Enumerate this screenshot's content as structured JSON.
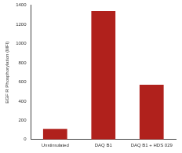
{
  "chart_data": {
    "type": "bar",
    "y_label": "EGF R Phosphorylation (MFI)",
    "categories": [
      "Unstimulated",
      "DAQ B1",
      "DAQ B1 + HDS 029"
    ],
    "values": [
      110,
      1340,
      570
    ],
    "color": "#b0211c",
    "ylim": [
      0,
      1400
    ],
    "yticks": [
      0,
      200,
      400,
      600,
      800,
      1000,
      1200,
      1400
    ],
    "grid": false
  }
}
